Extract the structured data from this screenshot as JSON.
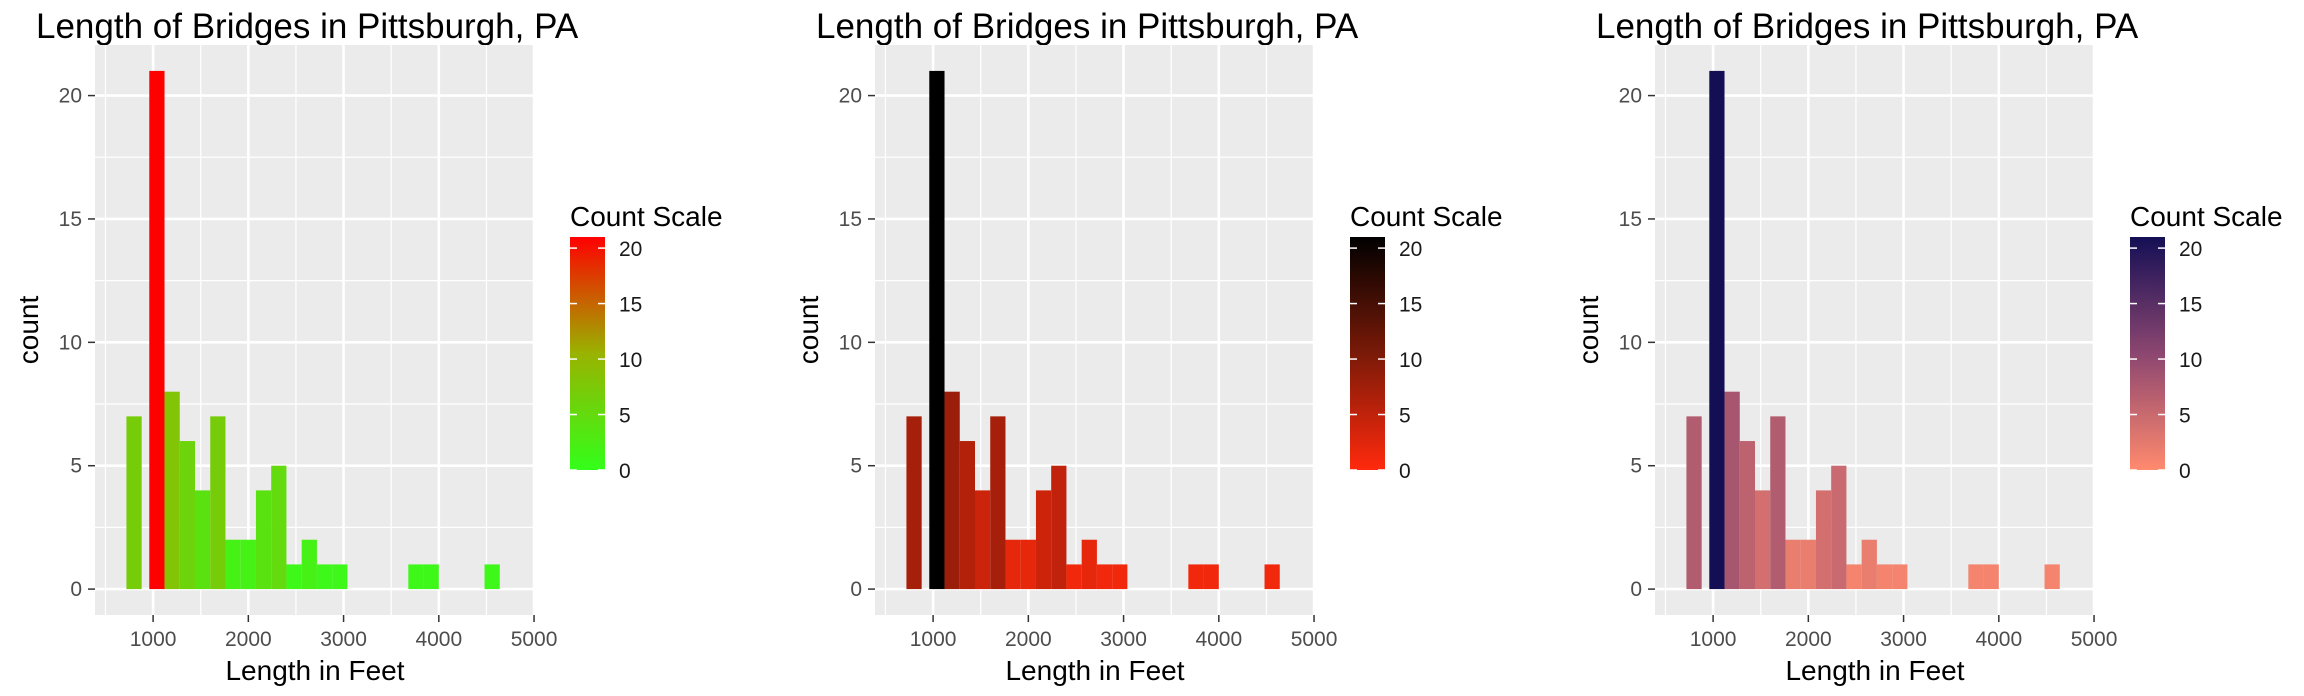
{
  "chart_data": [
    {
      "type": "bar",
      "title": "Length of Bridges in Pittsburgh, PA",
      "xlabel": "Length in Feet",
      "ylabel": "count",
      "xlim": [
        390,
        5010
      ],
      "ylim": [
        -1.05,
        22.05
      ],
      "x_ticks": [
        1000,
        2000,
        3000,
        4000,
        5000
      ],
      "y_ticks": [
        0,
        5,
        10,
        15,
        20
      ],
      "bin_width": 160,
      "bins": [
        {
          "x": 800,
          "count": 7
        },
        {
          "x": 960,
          "count": 0
        },
        {
          "x": 1040,
          "count": 21
        },
        {
          "x": 1200,
          "count": 8
        },
        {
          "x": 1360,
          "count": 6
        },
        {
          "x": 1520,
          "count": 4
        },
        {
          "x": 1680,
          "count": 7
        },
        {
          "x": 1840,
          "count": 2
        },
        {
          "x": 2000,
          "count": 2
        },
        {
          "x": 2160,
          "count": 4
        },
        {
          "x": 2320,
          "count": 5
        },
        {
          "x": 2480,
          "count": 1
        },
        {
          "x": 2640,
          "count": 2
        },
        {
          "x": 2800,
          "count": 1
        },
        {
          "x": 2960,
          "count": 1
        },
        {
          "x": 3760,
          "count": 1
        },
        {
          "x": 3920,
          "count": 1
        },
        {
          "x": 4560,
          "count": 1
        }
      ],
      "fill_scale": {
        "low": "#33ff1a",
        "mid": "#99b300",
        "high": "#ff0000",
        "min": 0,
        "max": 21
      },
      "legend": {
        "title": "Count Scale",
        "breaks": [
          0,
          5,
          10,
          15,
          20
        ],
        "position": "right"
      },
      "grid": true
    },
    {
      "type": "bar",
      "title": "Length of Bridges in Pittsburgh, PA",
      "xlabel": "Length in Feet",
      "ylabel": "count",
      "xlim": [
        390,
        5010
      ],
      "ylim": [
        -1.05,
        22.05
      ],
      "x_ticks": [
        1000,
        2000,
        3000,
        4000,
        5000
      ],
      "y_ticks": [
        0,
        5,
        10,
        15,
        20
      ],
      "bin_width": 160,
      "bins": [
        {
          "x": 800,
          "count": 7
        },
        {
          "x": 960,
          "count": 0
        },
        {
          "x": 1040,
          "count": 21
        },
        {
          "x": 1200,
          "count": 8
        },
        {
          "x": 1360,
          "count": 6
        },
        {
          "x": 1520,
          "count": 4
        },
        {
          "x": 1680,
          "count": 7
        },
        {
          "x": 1840,
          "count": 2
        },
        {
          "x": 2000,
          "count": 2
        },
        {
          "x": 2160,
          "count": 4
        },
        {
          "x": 2320,
          "count": 5
        },
        {
          "x": 2480,
          "count": 1
        },
        {
          "x": 2640,
          "count": 2
        },
        {
          "x": 2800,
          "count": 1
        },
        {
          "x": 2960,
          "count": 1
        },
        {
          "x": 3760,
          "count": 1
        },
        {
          "x": 3920,
          "count": 1
        },
        {
          "x": 4560,
          "count": 1
        }
      ],
      "fill_scale": {
        "low": "#ff2a0d",
        "mid": "#7a1a08",
        "high": "#000000",
        "min": 0,
        "max": 21
      },
      "legend": {
        "title": "Count Scale",
        "breaks": [
          0,
          5,
          10,
          15,
          20
        ],
        "position": "right"
      },
      "grid": true
    },
    {
      "type": "bar",
      "title": "Length of Bridges in Pittsburgh, PA",
      "xlabel": "Length in Feet",
      "ylabel": "count",
      "xlim": [
        390,
        5010
      ],
      "ylim": [
        -1.05,
        22.05
      ],
      "x_ticks": [
        1000,
        2000,
        3000,
        4000,
        5000
      ],
      "y_ticks": [
        0,
        5,
        10,
        15,
        20
      ],
      "bin_width": 160,
      "bins": [
        {
          "x": 800,
          "count": 7
        },
        {
          "x": 960,
          "count": 0
        },
        {
          "x": 1040,
          "count": 21
        },
        {
          "x": 1200,
          "count": 8
        },
        {
          "x": 1360,
          "count": 6
        },
        {
          "x": 1520,
          "count": 4
        },
        {
          "x": 1680,
          "count": 7
        },
        {
          "x": 1840,
          "count": 2
        },
        {
          "x": 2000,
          "count": 2
        },
        {
          "x": 2160,
          "count": 4
        },
        {
          "x": 2320,
          "count": 5
        },
        {
          "x": 2480,
          "count": 1
        },
        {
          "x": 2640,
          "count": 2
        },
        {
          "x": 2800,
          "count": 1
        },
        {
          "x": 2960,
          "count": 1
        },
        {
          "x": 3760,
          "count": 1
        },
        {
          "x": 3920,
          "count": 1
        },
        {
          "x": 4560,
          "count": 1
        }
      ],
      "fill_scale": {
        "low": "#ff8a6e",
        "mid": "#8c4670",
        "high": "#140f55",
        "min": 0,
        "max": 21
      },
      "legend": {
        "title": "Count Scale",
        "breaks": [
          0,
          5,
          10,
          15,
          20
        ],
        "position": "right"
      },
      "grid": true
    }
  ]
}
